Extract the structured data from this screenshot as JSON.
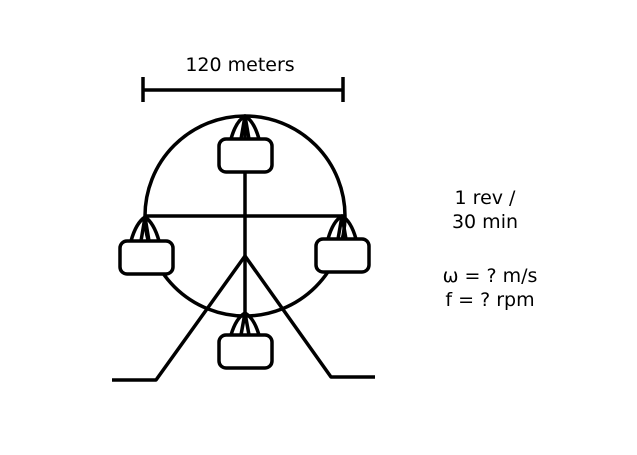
{
  "diameter_label": "120 meters",
  "rate_line_1": "1 rev /",
  "rate_line_2": "30 min",
  "omega_line": "ω = ? m/s",
  "freq_line": "f = ? rpm",
  "stroke_color": "#000000"
}
